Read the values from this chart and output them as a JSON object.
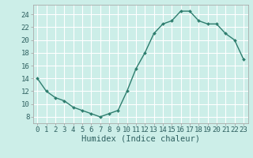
{
  "x": [
    0,
    1,
    2,
    3,
    4,
    5,
    6,
    7,
    8,
    9,
    10,
    11,
    12,
    13,
    14,
    15,
    16,
    17,
    18,
    19,
    20,
    21,
    22,
    23
  ],
  "y": [
    14,
    12,
    11,
    10.5,
    9.5,
    9,
    8.5,
    8,
    8.5,
    9,
    12,
    15.5,
    18,
    21,
    22.5,
    23,
    24.5,
    24.5,
    23,
    22.5,
    22.5,
    21,
    20,
    17
  ],
  "line_color": "#2e7d6e",
  "marker": "D",
  "marker_size": 2.0,
  "bg_color": "#cceee8",
  "grid_color": "#ffffff",
  "grid_minor_color": "#ddf5f0",
  "xlabel": "Humidex (Indice chaleur)",
  "xlim": [
    -0.5,
    23.5
  ],
  "ylim": [
    7,
    25.5
  ],
  "yticks": [
    8,
    10,
    12,
    14,
    16,
    18,
    20,
    22,
    24
  ],
  "xticks": [
    0,
    1,
    2,
    3,
    4,
    5,
    6,
    7,
    8,
    9,
    10,
    11,
    12,
    13,
    14,
    15,
    16,
    17,
    18,
    19,
    20,
    21,
    22,
    23
  ],
  "xtick_labels": [
    "0",
    "1",
    "2",
    "3",
    "4",
    "5",
    "6",
    "7",
    "8",
    "9",
    "10",
    "11",
    "12",
    "13",
    "14",
    "15",
    "16",
    "17",
    "18",
    "19",
    "20",
    "21",
    "22",
    "23"
  ],
  "line_width": 1.0,
  "tick_fontsize": 6.5,
  "xlabel_fontsize": 7.5,
  "spine_color": "#aaaaaa",
  "text_color": "#2e6060"
}
